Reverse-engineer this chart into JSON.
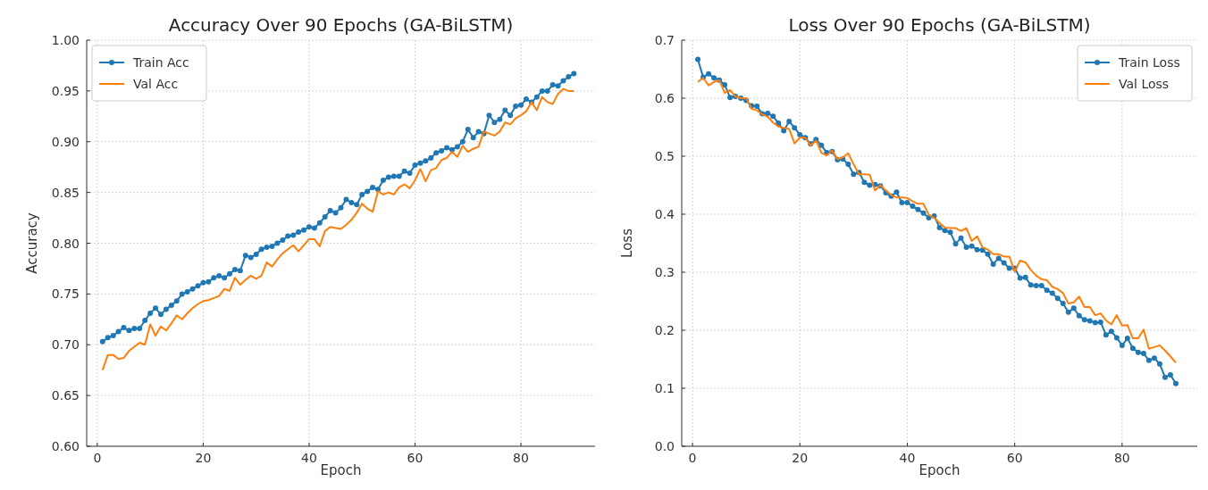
{
  "chart_data": [
    {
      "type": "line",
      "title": "Accuracy Over 90 Epochs (GA-BiLSTM)",
      "xlabel": "Epoch",
      "ylabel": "Accuracy",
      "x": [
        1,
        2,
        3,
        4,
        5,
        6,
        7,
        8,
        9,
        10,
        11,
        12,
        13,
        14,
        15,
        16,
        17,
        18,
        19,
        20,
        21,
        22,
        23,
        24,
        25,
        26,
        27,
        28,
        29,
        30,
        31,
        32,
        33,
        34,
        35,
        36,
        37,
        38,
        39,
        40,
        41,
        42,
        43,
        44,
        45,
        46,
        47,
        48,
        49,
        50,
        51,
        52,
        53,
        54,
        55,
        56,
        57,
        58,
        59,
        60,
        61,
        62,
        63,
        64,
        65,
        66,
        67,
        68,
        69,
        70,
        71,
        72,
        73,
        74,
        75,
        76,
        77,
        78,
        79,
        80,
        81,
        82,
        83,
        84,
        85,
        86,
        87,
        88,
        89,
        90
      ],
      "series": [
        {
          "name": "Train Acc",
          "color": "#1f77b4",
          "marker": "circle",
          "values": [
            0.703,
            0.707,
            0.709,
            0.713,
            0.717,
            0.714,
            0.716,
            0.716,
            0.724,
            0.731,
            0.736,
            0.73,
            0.735,
            0.739,
            0.743,
            0.75,
            0.752,
            0.755,
            0.758,
            0.761,
            0.762,
            0.766,
            0.768,
            0.766,
            0.77,
            0.774,
            0.773,
            0.788,
            0.786,
            0.789,
            0.794,
            0.796,
            0.797,
            0.8,
            0.803,
            0.807,
            0.808,
            0.811,
            0.813,
            0.816,
            0.815,
            0.82,
            0.826,
            0.832,
            0.83,
            0.835,
            0.843,
            0.84,
            0.838,
            0.848,
            0.851,
            0.855,
            0.853,
            0.862,
            0.865,
            0.866,
            0.866,
            0.871,
            0.869,
            0.877,
            0.879,
            0.881,
            0.884,
            0.889,
            0.891,
            0.894,
            0.892,
            0.895,
            0.9,
            0.912,
            0.904,
            0.91,
            0.908,
            0.926,
            0.919,
            0.922,
            0.931,
            0.926,
            0.935,
            0.936,
            0.942,
            0.939,
            0.944,
            0.95,
            0.95,
            0.956,
            0.955,
            0.96,
            0.964,
            0.967
          ]
        },
        {
          "name": "Val Acc",
          "color": "#ff7f0e",
          "marker": "none",
          "values": [
            0.675,
            0.69,
            0.69,
            0.686,
            0.687,
            0.694,
            0.698,
            0.702,
            0.7,
            0.72,
            0.709,
            0.718,
            0.714,
            0.721,
            0.729,
            0.725,
            0.731,
            0.736,
            0.74,
            0.743,
            0.744,
            0.746,
            0.748,
            0.755,
            0.753,
            0.766,
            0.759,
            0.764,
            0.768,
            0.765,
            0.768,
            0.781,
            0.777,
            0.784,
            0.79,
            0.794,
            0.798,
            0.792,
            0.798,
            0.804,
            0.804,
            0.797,
            0.812,
            0.816,
            0.815,
            0.814,
            0.818,
            0.823,
            0.83,
            0.839,
            0.834,
            0.831,
            0.851,
            0.848,
            0.85,
            0.848,
            0.855,
            0.858,
            0.854,
            0.862,
            0.873,
            0.861,
            0.872,
            0.874,
            0.882,
            0.884,
            0.89,
            0.885,
            0.896,
            0.89,
            0.893,
            0.895,
            0.91,
            0.908,
            0.906,
            0.91,
            0.919,
            0.917,
            0.923,
            0.926,
            0.93,
            0.939,
            0.931,
            0.944,
            0.939,
            0.937,
            0.947,
            0.952,
            0.95,
            0.95
          ]
        }
      ],
      "xlim": [
        -2,
        94
      ],
      "xticks": [
        0,
        20,
        40,
        60,
        80
      ],
      "ylim": [
        0.6,
        1.0
      ],
      "yticks": [
        {
          "value": 0.6,
          "label": "0.60"
        },
        {
          "value": 0.65,
          "label": "0.65"
        },
        {
          "value": 0.7,
          "label": "0.70"
        },
        {
          "value": 0.75,
          "label": "0.75"
        },
        {
          "value": 0.8,
          "label": "0.80"
        },
        {
          "value": 0.85,
          "label": "0.85"
        },
        {
          "value": 0.9,
          "label": "0.90"
        },
        {
          "value": 0.95,
          "label": "0.95"
        },
        {
          "value": 1.0,
          "label": "1.00"
        }
      ],
      "grid": true,
      "legend": "top left",
      "line_style": "solid"
    },
    {
      "type": "line",
      "title": "Loss Over 90 Epochs (GA-BiLSTM)",
      "xlabel": "Epoch",
      "ylabel": "Loss",
      "x": [
        1,
        2,
        3,
        4,
        5,
        6,
        7,
        8,
        9,
        10,
        11,
        12,
        13,
        14,
        15,
        16,
        17,
        18,
        19,
        20,
        21,
        22,
        23,
        24,
        25,
        26,
        27,
        28,
        29,
        30,
        31,
        32,
        33,
        34,
        35,
        36,
        37,
        38,
        39,
        40,
        41,
        42,
        43,
        44,
        45,
        46,
        47,
        48,
        49,
        50,
        51,
        52,
        53,
        54,
        55,
        56,
        57,
        58,
        59,
        60,
        61,
        62,
        63,
        64,
        65,
        66,
        67,
        68,
        69,
        70,
        71,
        72,
        73,
        74,
        75,
        76,
        77,
        78,
        79,
        80,
        81,
        82,
        83,
        84,
        85,
        86,
        87,
        88,
        89,
        90
      ],
      "series": [
        {
          "name": "Train Loss",
          "color": "#1f77b4",
          "marker": "circle",
          "values": [
            0.667,
            0.636,
            0.642,
            0.635,
            0.631,
            0.623,
            0.601,
            0.603,
            0.6,
            0.596,
            0.587,
            0.586,
            0.573,
            0.574,
            0.569,
            0.557,
            0.544,
            0.56,
            0.549,
            0.537,
            0.532,
            0.521,
            0.529,
            0.519,
            0.506,
            0.508,
            0.494,
            0.495,
            0.486,
            0.469,
            0.472,
            0.455,
            0.45,
            0.451,
            0.449,
            0.437,
            0.431,
            0.438,
            0.42,
            0.42,
            0.414,
            0.408,
            0.402,
            0.394,
            0.397,
            0.377,
            0.372,
            0.369,
            0.349,
            0.359,
            0.343,
            0.345,
            0.339,
            0.338,
            0.331,
            0.314,
            0.324,
            0.316,
            0.307,
            0.307,
            0.29,
            0.291,
            0.278,
            0.277,
            0.277,
            0.269,
            0.264,
            0.255,
            0.246,
            0.231,
            0.238,
            0.225,
            0.218,
            0.216,
            0.213,
            0.214,
            0.192,
            0.198,
            0.187,
            0.174,
            0.186,
            0.169,
            0.162,
            0.16,
            0.148,
            0.152,
            0.142,
            0.119,
            0.123,
            0.108
          ]
        },
        {
          "name": "Val Loss",
          "color": "#ff7f0e",
          "marker": "none",
          "values": [
            0.628,
            0.635,
            0.622,
            0.628,
            0.631,
            0.609,
            0.614,
            0.603,
            0.6,
            0.6,
            0.582,
            0.579,
            0.572,
            0.568,
            0.558,
            0.551,
            0.549,
            0.547,
            0.522,
            0.532,
            0.532,
            0.518,
            0.527,
            0.506,
            0.501,
            0.51,
            0.495,
            0.498,
            0.505,
            0.486,
            0.469,
            0.469,
            0.468,
            0.441,
            0.45,
            0.441,
            0.433,
            0.429,
            0.429,
            0.428,
            0.422,
            0.418,
            0.418,
            0.399,
            0.394,
            0.385,
            0.377,
            0.376,
            0.376,
            0.371,
            0.376,
            0.354,
            0.362,
            0.343,
            0.339,
            0.331,
            0.331,
            0.327,
            0.327,
            0.301,
            0.32,
            0.317,
            0.304,
            0.294,
            0.288,
            0.286,
            0.275,
            0.271,
            0.264,
            0.246,
            0.248,
            0.258,
            0.24,
            0.24,
            0.226,
            0.229,
            0.217,
            0.21,
            0.226,
            0.208,
            0.209,
            0.186,
            0.186,
            0.201,
            0.168,
            0.171,
            0.174,
            0.165,
            0.155,
            0.144
          ]
        }
      ],
      "xlim": [
        -2,
        94
      ],
      "xticks": [
        0,
        20,
        40,
        60,
        80
      ],
      "ylim": [
        0,
        0.7
      ],
      "yticks": [
        {
          "value": 0,
          "label": "0.0"
        },
        {
          "value": 0.1,
          "label": "0.1"
        },
        {
          "value": 0.2,
          "label": "0.2"
        },
        {
          "value": 0.3,
          "label": "0.3"
        },
        {
          "value": 0.4,
          "label": "0.4"
        },
        {
          "value": 0.5,
          "label": "0.5"
        },
        {
          "value": 0.6,
          "label": "0.6"
        },
        {
          "value": 0.7,
          "label": "0.7"
        }
      ],
      "grid": true,
      "legend": "top right",
      "line_style": "solid"
    }
  ]
}
